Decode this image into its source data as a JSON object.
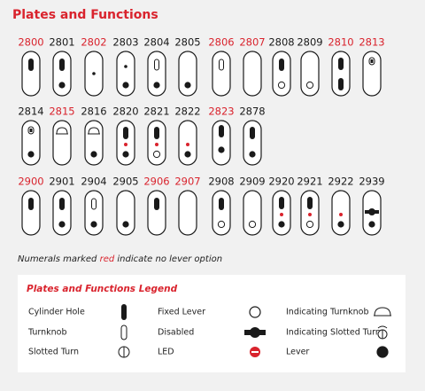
{
  "header": {
    "title": "Plates and Functions"
  },
  "rows": [
    [
      {
        "label": "2800",
        "red": true
      },
      {
        "label": "2801",
        "red": false
      },
      {
        "label": "2802",
        "red": true
      },
      {
        "label": "2803",
        "red": false
      },
      {
        "label": "2804",
        "red": false
      },
      {
        "label": "2805",
        "red": false
      },
      {
        "label": "2806",
        "red": true
      },
      {
        "label": "2807",
        "red": true
      },
      {
        "label": "2808",
        "red": false
      },
      {
        "label": "2809",
        "red": false
      },
      {
        "label": "2810",
        "red": true
      },
      {
        "label": "2813",
        "red": true
      }
    ],
    [
      {
        "label": "2814",
        "red": false
      },
      {
        "label": "2815",
        "red": true
      },
      {
        "label": "2816",
        "red": false
      },
      {
        "label": "2820",
        "red": false
      },
      {
        "label": "2821",
        "red": false
      },
      {
        "label": "2822",
        "red": false
      },
      {
        "label": "2823",
        "red": true
      },
      {
        "label": "2878",
        "red": false
      }
    ],
    [
      {
        "label": "2900",
        "red": true
      },
      {
        "label": "2901",
        "red": false
      },
      {
        "label": "2904",
        "red": false
      },
      {
        "label": "2905",
        "red": false
      },
      {
        "label": "2906",
        "red": true
      },
      {
        "label": "2907",
        "red": true
      },
      {
        "label": "2908",
        "red": false
      },
      {
        "label": "2909",
        "red": false
      },
      {
        "label": "2920",
        "red": false
      },
      {
        "label": "2921",
        "red": false
      },
      {
        "label": "2922",
        "red": false
      },
      {
        "label": "2939",
        "red": false
      }
    ]
  ],
  "note": {
    "before": "Numerals marked",
    "highlight": "red",
    "after": "indicate no lever option"
  },
  "legend": {
    "title": "Plates and  Functions Legend",
    "items": [
      "Cylinder Hole",
      "Turnknob",
      "Slotted Turn",
      "Fixed Lever",
      "Disabled",
      "LED",
      "Indicating Turnknob",
      "Indicating Slotted Turn",
      "Lever"
    ]
  }
}
